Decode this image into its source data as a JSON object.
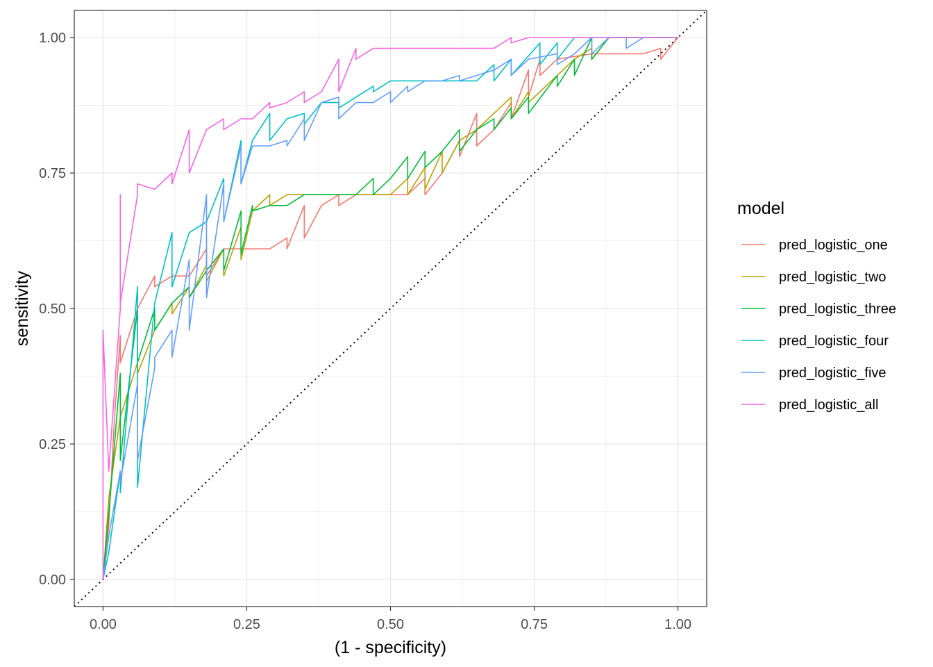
{
  "chart_data": {
    "type": "line",
    "title": "",
    "xlabel": "(1 - specificity)",
    "ylabel": "sensitivity",
    "xlim": [
      -0.05,
      1.05
    ],
    "ylim": [
      -0.05,
      1.05
    ],
    "x_ticks": [
      "0.00",
      "0.25",
      "0.50",
      "0.75",
      "1.00"
    ],
    "y_ticks": [
      "0.00",
      "0.25",
      "0.50",
      "0.75",
      "1.00"
    ],
    "grid": true,
    "legend": {
      "title": "model",
      "position": "right"
    },
    "reference_line": {
      "type": "diagonal",
      "style": "dotted",
      "color": "#000000"
    },
    "series": [
      {
        "name": "pred_logistic_one",
        "color": "#F8766D",
        "points": [
          [
            0,
            0
          ],
          [
            0.01,
            0.1
          ],
          [
            0.02,
            0.3
          ],
          [
            0.03,
            0.45
          ],
          [
            0.03,
            0.4
          ],
          [
            0.06,
            0.5
          ],
          [
            0.09,
            0.56
          ],
          [
            0.09,
            0.54
          ],
          [
            0.12,
            0.56
          ],
          [
            0.15,
            0.56
          ],
          [
            0.18,
            0.61
          ],
          [
            0.18,
            0.56
          ],
          [
            0.21,
            0.61
          ],
          [
            0.24,
            0.61
          ],
          [
            0.29,
            0.61
          ],
          [
            0.32,
            0.63
          ],
          [
            0.32,
            0.61
          ],
          [
            0.35,
            0.69
          ],
          [
            0.35,
            0.63
          ],
          [
            0.38,
            0.69
          ],
          [
            0.41,
            0.71
          ],
          [
            0.41,
            0.69
          ],
          [
            0.44,
            0.71
          ],
          [
            0.47,
            0.71
          ],
          [
            0.53,
            0.71
          ],
          [
            0.56,
            0.74
          ],
          [
            0.56,
            0.71
          ],
          [
            0.59,
            0.75
          ],
          [
            0.62,
            0.81
          ],
          [
            0.62,
            0.78
          ],
          [
            0.65,
            0.86
          ],
          [
            0.65,
            0.8
          ],
          [
            0.68,
            0.83
          ],
          [
            0.71,
            0.88
          ],
          [
            0.71,
            0.85
          ],
          [
            0.74,
            0.94
          ],
          [
            0.74,
            0.89
          ],
          [
            0.76,
            0.96
          ],
          [
            0.76,
            0.93
          ],
          [
            0.79,
            0.96
          ],
          [
            0.85,
            0.97
          ],
          [
            0.88,
            0.97
          ],
          [
            0.94,
            0.97
          ],
          [
            0.97,
            0.98
          ],
          [
            0.97,
            0.96
          ],
          [
            1.0,
            1.0
          ]
        ]
      },
      {
        "name": "pred_logistic_two",
        "color": "#B79F00",
        "points": [
          [
            0,
            0
          ],
          [
            0.01,
            0.15
          ],
          [
            0.03,
            0.3
          ],
          [
            0.06,
            0.4
          ],
          [
            0.06,
            0.38
          ],
          [
            0.09,
            0.46
          ],
          [
            0.12,
            0.51
          ],
          [
            0.12,
            0.49
          ],
          [
            0.15,
            0.54
          ],
          [
            0.15,
            0.52
          ],
          [
            0.18,
            0.58
          ],
          [
            0.18,
            0.55
          ],
          [
            0.21,
            0.61
          ],
          [
            0.21,
            0.56
          ],
          [
            0.24,
            0.65
          ],
          [
            0.24,
            0.59
          ],
          [
            0.26,
            0.68
          ],
          [
            0.29,
            0.71
          ],
          [
            0.29,
            0.69
          ],
          [
            0.32,
            0.71
          ],
          [
            0.38,
            0.71
          ],
          [
            0.44,
            0.71
          ],
          [
            0.5,
            0.71
          ],
          [
            0.53,
            0.74
          ],
          [
            0.53,
            0.71
          ],
          [
            0.56,
            0.76
          ],
          [
            0.56,
            0.72
          ],
          [
            0.59,
            0.79
          ],
          [
            0.59,
            0.75
          ],
          [
            0.62,
            0.81
          ],
          [
            0.65,
            0.83
          ],
          [
            0.68,
            0.86
          ],
          [
            0.71,
            0.89
          ],
          [
            0.71,
            0.85
          ],
          [
            0.74,
            0.9
          ],
          [
            0.74,
            0.88
          ],
          [
            0.79,
            0.93
          ],
          [
            0.82,
            0.96
          ],
          [
            0.85,
            0.98
          ],
          [
            0.85,
            0.96
          ],
          [
            0.88,
            1.0
          ],
          [
            1.0,
            1.0
          ]
        ]
      },
      {
        "name": "pred_logistic_three",
        "color": "#00BA38",
        "points": [
          [
            0,
            0
          ],
          [
            0.01,
            0.12
          ],
          [
            0.03,
            0.38
          ],
          [
            0.03,
            0.22
          ],
          [
            0.06,
            0.5
          ],
          [
            0.06,
            0.4
          ],
          [
            0.09,
            0.5
          ],
          [
            0.09,
            0.46
          ],
          [
            0.12,
            0.51
          ],
          [
            0.15,
            0.54
          ],
          [
            0.15,
            0.52
          ],
          [
            0.18,
            0.57
          ],
          [
            0.21,
            0.61
          ],
          [
            0.21,
            0.57
          ],
          [
            0.24,
            0.68
          ],
          [
            0.24,
            0.6
          ],
          [
            0.26,
            0.69
          ],
          [
            0.26,
            0.68
          ],
          [
            0.29,
            0.69
          ],
          [
            0.32,
            0.69
          ],
          [
            0.35,
            0.71
          ],
          [
            0.38,
            0.71
          ],
          [
            0.44,
            0.71
          ],
          [
            0.47,
            0.74
          ],
          [
            0.47,
            0.71
          ],
          [
            0.5,
            0.74
          ],
          [
            0.53,
            0.78
          ],
          [
            0.53,
            0.74
          ],
          [
            0.56,
            0.79
          ],
          [
            0.56,
            0.76
          ],
          [
            0.59,
            0.79
          ],
          [
            0.62,
            0.83
          ],
          [
            0.62,
            0.79
          ],
          [
            0.65,
            0.83
          ],
          [
            0.68,
            0.85
          ],
          [
            0.68,
            0.83
          ],
          [
            0.71,
            0.87
          ],
          [
            0.71,
            0.85
          ],
          [
            0.74,
            0.89
          ],
          [
            0.74,
            0.86
          ],
          [
            0.79,
            0.93
          ],
          [
            0.79,
            0.91
          ],
          [
            0.82,
            0.96
          ],
          [
            0.82,
            0.93
          ],
          [
            0.85,
            1.0
          ],
          [
            0.85,
            0.96
          ],
          [
            0.88,
            1.0
          ],
          [
            1.0,
            1.0
          ]
        ]
      },
      {
        "name": "pred_logistic_four",
        "color": "#00BFC4",
        "points": [
          [
            0,
            0
          ],
          [
            0.01,
            0.05
          ],
          [
            0.03,
            0.2
          ],
          [
            0.03,
            0.16
          ],
          [
            0.06,
            0.54
          ],
          [
            0.06,
            0.17
          ],
          [
            0.09,
            0.51
          ],
          [
            0.12,
            0.64
          ],
          [
            0.12,
            0.54
          ],
          [
            0.15,
            0.64
          ],
          [
            0.18,
            0.66
          ],
          [
            0.21,
            0.74
          ],
          [
            0.21,
            0.66
          ],
          [
            0.24,
            0.81
          ],
          [
            0.24,
            0.73
          ],
          [
            0.26,
            0.81
          ],
          [
            0.29,
            0.86
          ],
          [
            0.29,
            0.81
          ],
          [
            0.32,
            0.85
          ],
          [
            0.35,
            0.86
          ],
          [
            0.35,
            0.84
          ],
          [
            0.38,
            0.88
          ],
          [
            0.41,
            0.88
          ],
          [
            0.41,
            0.87
          ],
          [
            0.44,
            0.89
          ],
          [
            0.47,
            0.91
          ],
          [
            0.47,
            0.9
          ],
          [
            0.5,
            0.92
          ],
          [
            0.53,
            0.92
          ],
          [
            0.59,
            0.92
          ],
          [
            0.65,
            0.92
          ],
          [
            0.68,
            0.95
          ],
          [
            0.68,
            0.92
          ],
          [
            0.71,
            0.96
          ],
          [
            0.71,
            0.93
          ],
          [
            0.76,
            0.99
          ],
          [
            0.76,
            0.95
          ],
          [
            0.79,
            0.99
          ],
          [
            0.79,
            0.96
          ],
          [
            0.82,
            1.0
          ],
          [
            0.85,
            1.0
          ],
          [
            0.88,
            1.0
          ],
          [
            1.0,
            1.0
          ]
        ]
      },
      {
        "name": "pred_logistic_five",
        "color": "#619CFF",
        "points": [
          [
            0,
            0
          ],
          [
            0.01,
            0.08
          ],
          [
            0.03,
            0.2
          ],
          [
            0.03,
            0.18
          ],
          [
            0.06,
            0.36
          ],
          [
            0.06,
            0.22
          ],
          [
            0.09,
            0.39
          ],
          [
            0.09,
            0.41
          ],
          [
            0.12,
            0.46
          ],
          [
            0.12,
            0.41
          ],
          [
            0.15,
            0.59
          ],
          [
            0.15,
            0.46
          ],
          [
            0.18,
            0.71
          ],
          [
            0.18,
            0.52
          ],
          [
            0.21,
            0.73
          ],
          [
            0.21,
            0.66
          ],
          [
            0.24,
            0.8
          ],
          [
            0.24,
            0.73
          ],
          [
            0.26,
            0.8
          ],
          [
            0.29,
            0.8
          ],
          [
            0.32,
            0.81
          ],
          [
            0.32,
            0.8
          ],
          [
            0.35,
            0.85
          ],
          [
            0.35,
            0.81
          ],
          [
            0.38,
            0.88
          ],
          [
            0.41,
            0.89
          ],
          [
            0.41,
            0.85
          ],
          [
            0.44,
            0.88
          ],
          [
            0.47,
            0.88
          ],
          [
            0.5,
            0.9
          ],
          [
            0.5,
            0.88
          ],
          [
            0.53,
            0.91
          ],
          [
            0.53,
            0.9
          ],
          [
            0.56,
            0.92
          ],
          [
            0.59,
            0.92
          ],
          [
            0.62,
            0.93
          ],
          [
            0.62,
            0.92
          ],
          [
            0.65,
            0.93
          ],
          [
            0.68,
            0.94
          ],
          [
            0.71,
            0.96
          ],
          [
            0.71,
            0.93
          ],
          [
            0.74,
            0.96
          ],
          [
            0.79,
            0.97
          ],
          [
            0.79,
            0.95
          ],
          [
            0.82,
            0.97
          ],
          [
            0.85,
            1.0
          ],
          [
            0.85,
            0.97
          ],
          [
            0.88,
            1.0
          ],
          [
            0.91,
            1.0
          ],
          [
            0.91,
            0.98
          ],
          [
            0.94,
            1.0
          ],
          [
            1.0,
            1.0
          ]
        ]
      },
      {
        "name": "pred_logistic_all",
        "color": "#F564E3",
        "points": [
          [
            0,
            0
          ],
          [
            0,
            0.46
          ],
          [
            0.01,
            0.2
          ],
          [
            0.03,
            0.5
          ],
          [
            0.03,
            0.71
          ],
          [
            0.03,
            0.51
          ],
          [
            0.06,
            0.71
          ],
          [
            0.06,
            0.73
          ],
          [
            0.09,
            0.72
          ],
          [
            0.12,
            0.75
          ],
          [
            0.12,
            0.73
          ],
          [
            0.15,
            0.83
          ],
          [
            0.15,
            0.75
          ],
          [
            0.18,
            0.83
          ],
          [
            0.21,
            0.85
          ],
          [
            0.21,
            0.83
          ],
          [
            0.24,
            0.85
          ],
          [
            0.26,
            0.85
          ],
          [
            0.29,
            0.88
          ],
          [
            0.29,
            0.87
          ],
          [
            0.32,
            0.88
          ],
          [
            0.35,
            0.9
          ],
          [
            0.35,
            0.88
          ],
          [
            0.38,
            0.9
          ],
          [
            0.41,
            0.96
          ],
          [
            0.41,
            0.9
          ],
          [
            0.44,
            0.98
          ],
          [
            0.44,
            0.96
          ],
          [
            0.47,
            0.98
          ],
          [
            0.53,
            0.98
          ],
          [
            0.59,
            0.98
          ],
          [
            0.65,
            0.98
          ],
          [
            0.68,
            0.98
          ],
          [
            0.71,
            1.0
          ],
          [
            0.71,
            0.99
          ],
          [
            0.74,
            1.0
          ],
          [
            0.82,
            1.0
          ],
          [
            0.88,
            1.0
          ],
          [
            1.0,
            1.0
          ]
        ]
      }
    ]
  }
}
